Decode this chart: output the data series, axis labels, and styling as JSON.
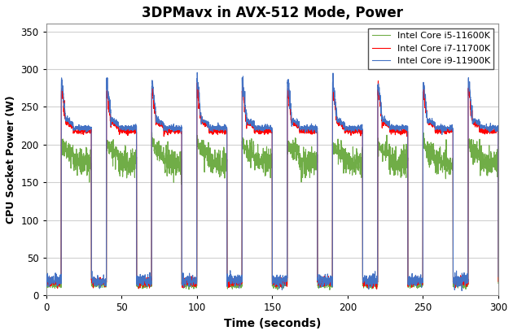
{
  "title": "3DPMavx in AVX-512 Mode, Power",
  "xlabel": "Time (seconds)",
  "ylabel": "CPU Socket Power (W)",
  "xlim": [
    0,
    300
  ],
  "ylim": [
    0,
    360
  ],
  "yticks": [
    0,
    50,
    100,
    150,
    200,
    250,
    300,
    350
  ],
  "xticks": [
    0,
    50,
    100,
    150,
    200,
    250,
    300
  ],
  "legend": [
    "Intel Core i9-11900K",
    "Intel Core i7-11700K",
    "Intel Core i5-11600K"
  ],
  "colors": {
    "i9": "#4472C4",
    "i7": "#FF0000",
    "i5": "#70AD47"
  },
  "background": "#FFFFFF",
  "grid_color": "#D0D0D0",
  "cycle_period": 30,
  "idle_duration": 10,
  "load_duration": 20,
  "total_time": 300,
  "num_cycles": 10,
  "i9_idle": 20,
  "i9_spike": 282,
  "i9_load_high": 233,
  "i9_load_low": 222,
  "i7_idle": 18,
  "i7_spike": 270,
  "i7_load_high": 230,
  "i7_load_low": 218,
  "i5_idle": 14,
  "i5_spike": 200,
  "i5_load": 192
}
